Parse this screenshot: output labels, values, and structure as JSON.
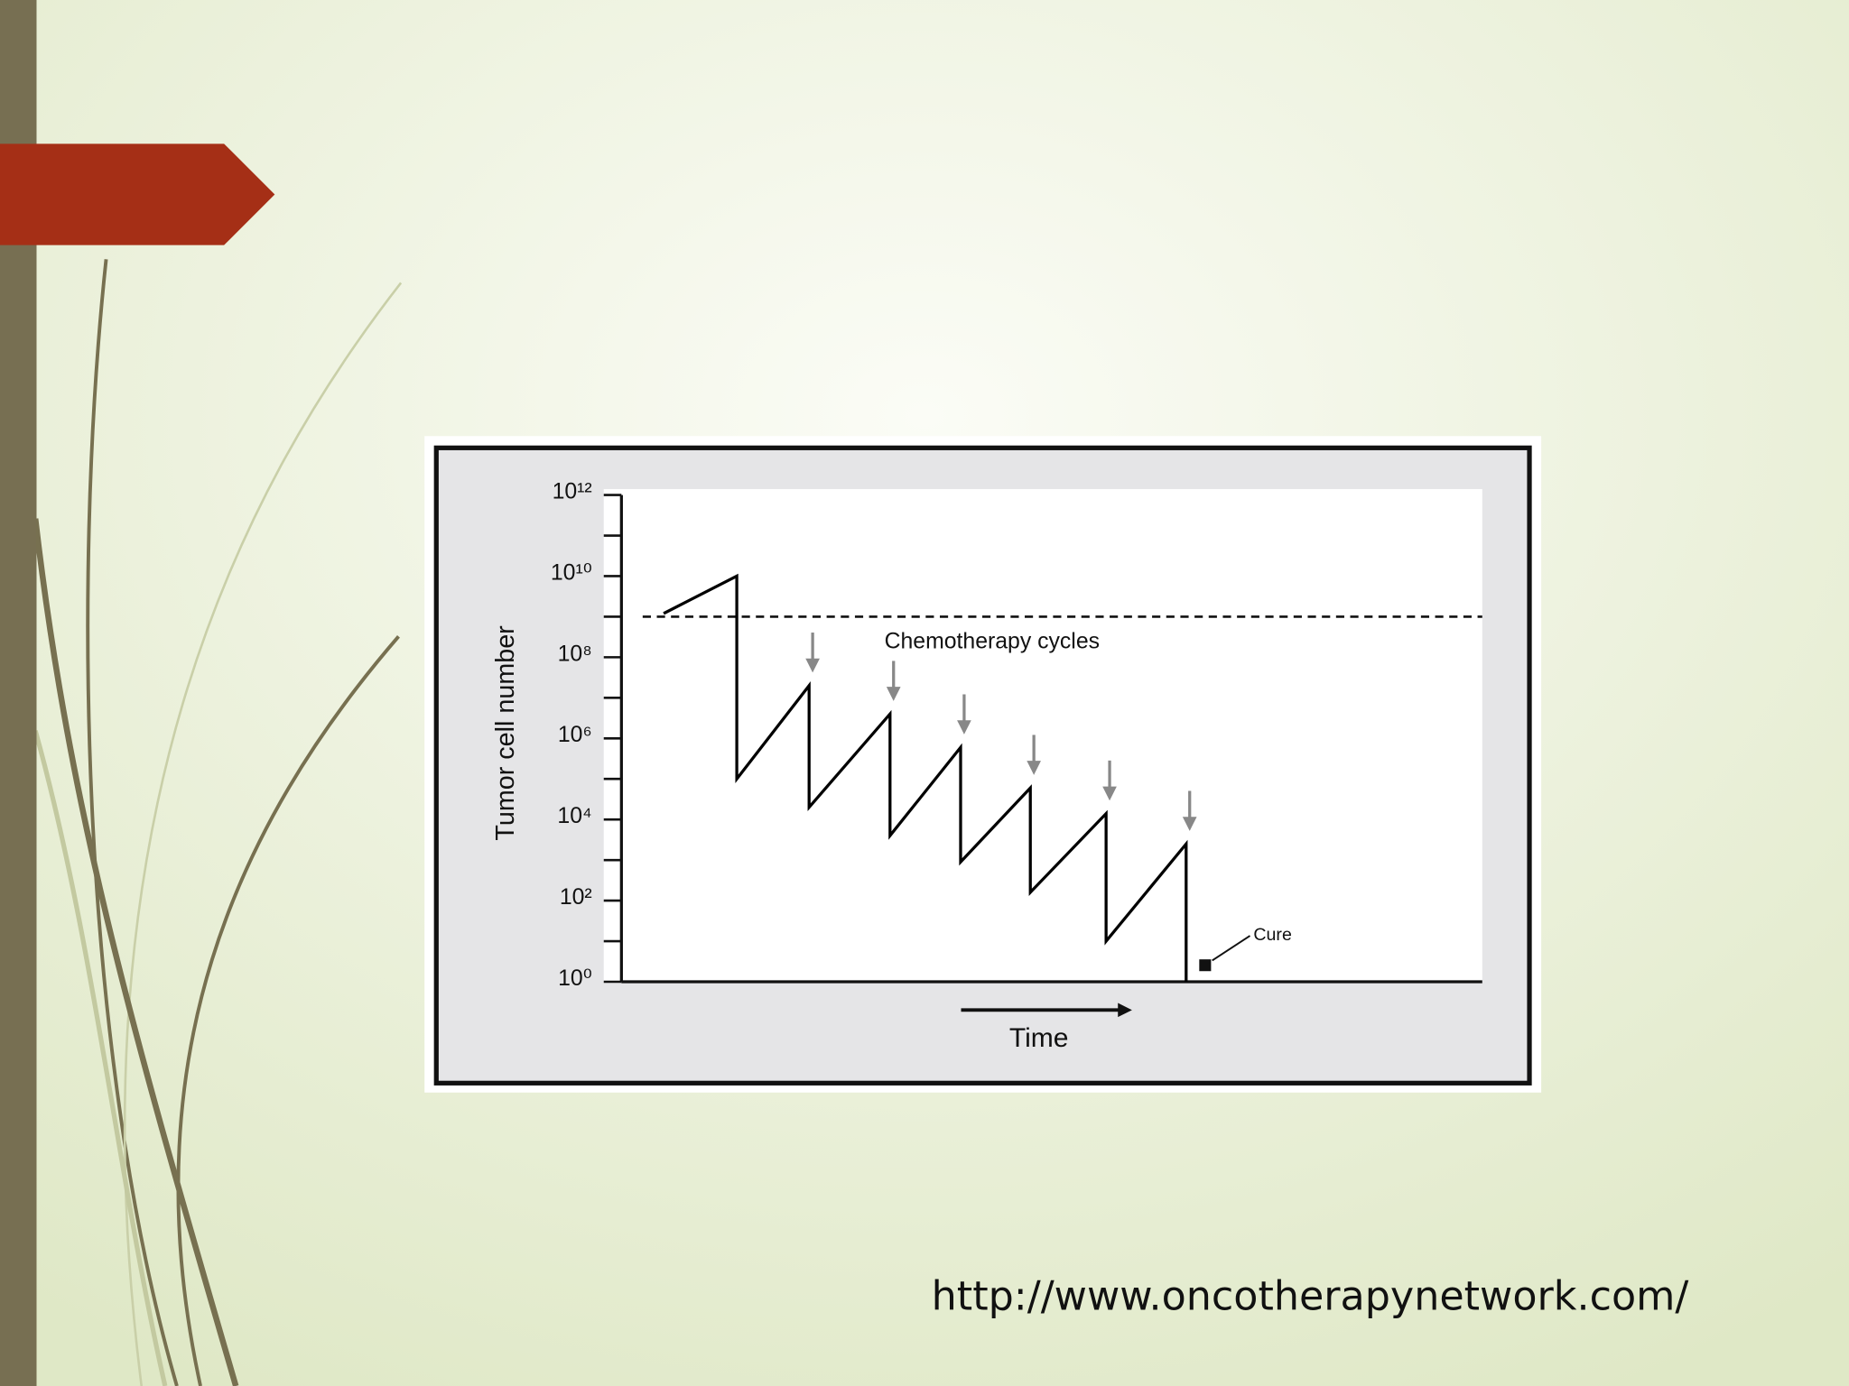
{
  "chart_data": {
    "type": "line",
    "ylabel": "Tumor cell number",
    "xlabel": "Time",
    "annotations": {
      "threshold_label": "Chemotherapy cycles",
      "cure_label": "Cure"
    },
    "x": [
      4.9,
      13.4,
      13.4,
      21.8,
      21.8,
      31.2,
      31.2,
      39.4,
      39.4,
      47.5,
      47.5,
      56.3,
      56.3,
      65.6,
      65.6
    ],
    "values": [
      1200000000,
      10000000000,
      100000,
      20000000,
      20000,
      4000000,
      4000,
      600000,
      900,
      60000,
      160,
      14000,
      10,
      2500,
      1
    ],
    "color": "#000000",
    "threshold": 1000000000,
    "xlim": [
      0,
      100
    ],
    "ylim": [
      1,
      1000000000000
    ],
    "log_y": true,
    "yticks": [
      {
        "value": 1,
        "label": "10⁰"
      },
      {
        "value": 100,
        "label": "10²"
      },
      {
        "value": 10000,
        "label": "10⁴"
      },
      {
        "value": 1000000,
        "label": "10⁶"
      },
      {
        "value": 100000000,
        "label": "10⁸"
      },
      {
        "value": 10000000000,
        "label": "10¹⁰"
      },
      {
        "value": 1000000000000,
        "label": "10¹²"
      }
    ],
    "yminorticks": [
      10,
      1000,
      100000,
      10000000,
      1000000000,
      100000000000
    ]
  },
  "footer": {
    "url": "http://www.oncotherapynetwork.com/"
  }
}
